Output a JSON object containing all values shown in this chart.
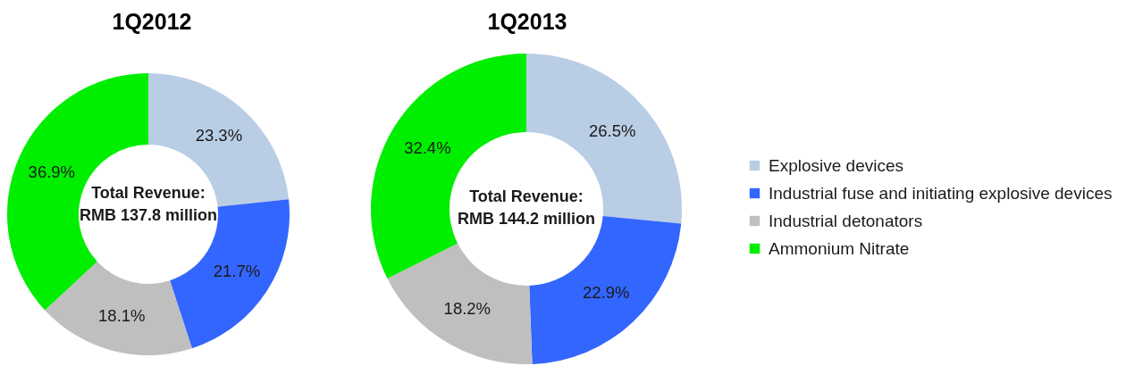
{
  "chart_data": [
    {
      "type": "donut",
      "title": "1Q2012",
      "categories": [
        "Explosive devices",
        "Industrial fuse and initiating explosive devices",
        "Industrial detonators",
        "Ammonium Nitrate"
      ],
      "values": [
        23.3,
        21.7,
        18.1,
        36.9
      ],
      "colors": [
        "#b9cde5",
        "#3366ff",
        "#bfbfbf",
        "#00ee00"
      ],
      "value_labels": [
        "23.3%",
        "21.7%",
        "18.1%",
        "36.9%"
      ],
      "annotations": [
        "Total Revenue:",
        "RMB 137.8 million"
      ],
      "legend": "right"
    },
    {
      "type": "donut",
      "title": "1Q2013",
      "categories": [
        null,
        null,
        null,
        null
      ],
      "values": [
        26.5,
        22.9,
        18.2,
        32.4
      ],
      "colors": [
        "#b9cde5",
        "#3366ff",
        "#bfbfbf",
        "#00ee00"
      ],
      "value_labels": [
        "26.5%",
        "22.9%",
        "18.2%",
        "32.4%"
      ],
      "annotations": [
        "Total Revenue:",
        "RMB 144.2 million"
      ]
    }
  ]
}
